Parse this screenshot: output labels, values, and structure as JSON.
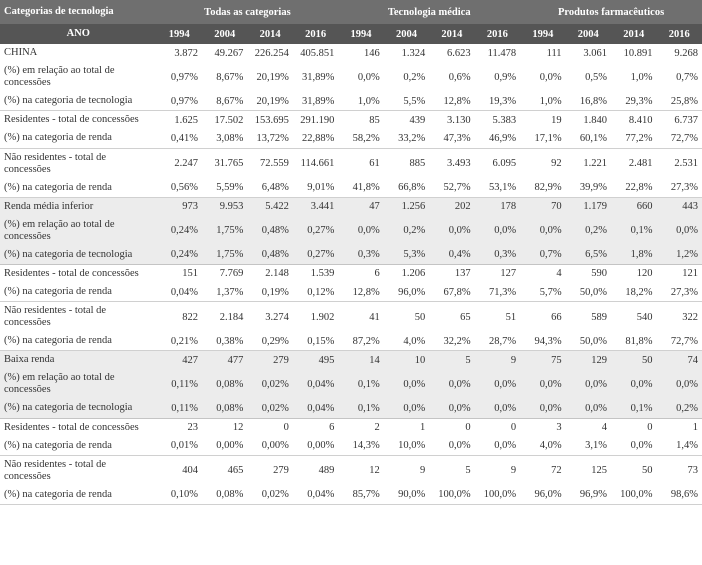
{
  "colors": {
    "header_dark": "#555555",
    "header_mid": "#6f6f6f",
    "header_text": "#ffffff",
    "band_bg": "#ececec",
    "sep": "#d0d0d0",
    "text": "#333333"
  },
  "typography": {
    "font_family": "Minion Pro / serif",
    "body_fontsize": 10.5,
    "header_fontsize": 10.5,
    "header_weight": "bold"
  },
  "header": {
    "group_label": "Categorias de tecnologia",
    "groups": [
      "Todas as categorias",
      "Tecnologia médica",
      "Produtos farmacêuticos"
    ],
    "year_label": "ANO",
    "years": [
      "1994",
      "2004",
      "2014",
      "2016",
      "1994",
      "2004",
      "2014",
      "2016",
      "1994",
      "2004",
      "2014",
      "2016"
    ]
  },
  "rows": [
    {
      "band": false,
      "sep": false,
      "label": "CHINA",
      "v": [
        "3.872",
        "49.267",
        "226.254",
        "405.851",
        "146",
        "1.324",
        "6.623",
        "11.478",
        "111",
        "3.061",
        "10.891",
        "9.268"
      ]
    },
    {
      "band": false,
      "sep": false,
      "label": "(%) em relação ao total de concessões",
      "v": [
        "0,97%",
        "8,67%",
        "20,19%",
        "31,89%",
        "0,0%",
        "0,2%",
        "0,6%",
        "0,9%",
        "0,0%",
        "0,5%",
        "1,0%",
        "0,7%"
      ]
    },
    {
      "band": false,
      "sep": true,
      "label": "(%) na categoria de tecnologia",
      "v": [
        "0,97%",
        "8,67%",
        "20,19%",
        "31,89%",
        "1,0%",
        "5,5%",
        "12,8%",
        "19,3%",
        "1,0%",
        "16,8%",
        "29,3%",
        "25,8%"
      ]
    },
    {
      "band": false,
      "sep": false,
      "label": "Residentes - total de concessões",
      "v": [
        "1.625",
        "17.502",
        "153.695",
        "291.190",
        "85",
        "439",
        "3.130",
        "5.383",
        "19",
        "1.840",
        "8.410",
        "6.737"
      ]
    },
    {
      "band": false,
      "sep": true,
      "label": "(%) na categoria de renda",
      "v": [
        "0,41%",
        "3,08%",
        "13,72%",
        "22,88%",
        "58,2%",
        "33,2%",
        "47,3%",
        "46,9%",
        "17,1%",
        "60,1%",
        "77,2%",
        "72,7%"
      ]
    },
    {
      "band": false,
      "sep": false,
      "label": "Não residentes - total de concessões",
      "v": [
        "2.247",
        "31.765",
        "72.559",
        "114.661",
        "61",
        "885",
        "3.493",
        "6.095",
        "92",
        "1.221",
        "2.481",
        "2.531"
      ]
    },
    {
      "band": false,
      "sep": true,
      "label": "(%) na categoria de renda",
      "v": [
        "0,56%",
        "5,59%",
        "6,48%",
        "9,01%",
        "41,8%",
        "66,8%",
        "52,7%",
        "53,1%",
        "82,9%",
        "39,9%",
        "22,8%",
        "27,3%"
      ]
    },
    {
      "band": true,
      "sep": false,
      "label": "Renda média inferior",
      "v": [
        "973",
        "9.953",
        "5.422",
        "3.441",
        "47",
        "1.256",
        "202",
        "178",
        "70",
        "1.179",
        "660",
        "443"
      ]
    },
    {
      "band": true,
      "sep": false,
      "label": "(%) em relação ao total de concessões",
      "v": [
        "0,24%",
        "1,75%",
        "0,48%",
        "0,27%",
        "0,0%",
        "0,2%",
        "0,0%",
        "0,0%",
        "0,0%",
        "0,2%",
        "0,1%",
        "0,0%"
      ]
    },
    {
      "band": true,
      "sep": true,
      "label": "(%) na categoria de tecnologia",
      "v": [
        "0,24%",
        "1,75%",
        "0,48%",
        "0,27%",
        "0,3%",
        "5,3%",
        "0,4%",
        "0,3%",
        "0,7%",
        "6,5%",
        "1,8%",
        "1,2%"
      ]
    },
    {
      "band": false,
      "sep": false,
      "label": "Residentes - total de concessões",
      "v": [
        "151",
        "7.769",
        "2.148",
        "1.539",
        "6",
        "1.206",
        "137",
        "127",
        "4",
        "590",
        "120",
        "121"
      ]
    },
    {
      "band": false,
      "sep": true,
      "label": "(%) na categoria de renda",
      "v": [
        "0,04%",
        "1,37%",
        "0,19%",
        "0,12%",
        "12,8%",
        "96,0%",
        "67,8%",
        "71,3%",
        "5,7%",
        "50,0%",
        "18,2%",
        "27,3%"
      ]
    },
    {
      "band": false,
      "sep": false,
      "label": "Não residentes - total de concessões",
      "v": [
        "822",
        "2.184",
        "3.274",
        "1.902",
        "41",
        "50",
        "65",
        "51",
        "66",
        "589",
        "540",
        "322"
      ]
    },
    {
      "band": false,
      "sep": true,
      "label": "(%) na categoria de renda",
      "v": [
        "0,21%",
        "0,38%",
        "0,29%",
        "0,15%",
        "87,2%",
        "4,0%",
        "32,2%",
        "28,7%",
        "94,3%",
        "50,0%",
        "81,8%",
        "72,7%"
      ]
    },
    {
      "band": true,
      "sep": false,
      "label": "Baixa renda",
      "v": [
        "427",
        "477",
        "279",
        "495",
        "14",
        "10",
        "5",
        "9",
        "75",
        "129",
        "50",
        "74"
      ]
    },
    {
      "band": true,
      "sep": false,
      "label": "(%) em relação ao total de concessões",
      "v": [
        "0,11%",
        "0,08%",
        "0,02%",
        "0,04%",
        "0,1%",
        "0,0%",
        "0,0%",
        "0,0%",
        "0,0%",
        "0,0%",
        "0,0%",
        "0,0%"
      ]
    },
    {
      "band": true,
      "sep": true,
      "label": "(%) na categoria de tecnologia",
      "v": [
        "0,11%",
        "0,08%",
        "0,02%",
        "0,04%",
        "0,1%",
        "0,0%",
        "0,0%",
        "0,0%",
        "0,0%",
        "0,0%",
        "0,1%",
        "0,2%"
      ]
    },
    {
      "band": false,
      "sep": false,
      "label": "Residentes - total de concessões",
      "v": [
        "23",
        "12",
        "0",
        "6",
        "2",
        "1",
        "0",
        "0",
        "3",
        "4",
        "0",
        "1"
      ]
    },
    {
      "band": false,
      "sep": true,
      "label": "(%) na categoria de renda",
      "v": [
        "0,01%",
        "0,00%",
        "0,00%",
        "0,00%",
        "14,3%",
        "10,0%",
        "0,0%",
        "0,0%",
        "4,0%",
        "3,1%",
        "0,0%",
        "1,4%"
      ]
    },
    {
      "band": false,
      "sep": false,
      "label": "Não residentes - total de concessões",
      "v": [
        "404",
        "465",
        "279",
        "489",
        "12",
        "9",
        "5",
        "9",
        "72",
        "125",
        "50",
        "73"
      ]
    },
    {
      "band": false,
      "sep": true,
      "label": "(%) na categoria de renda",
      "v": [
        "0,10%",
        "0,08%",
        "0,02%",
        "0,04%",
        "85,7%",
        "90,0%",
        "100,0%",
        "100,0%",
        "96,0%",
        "96,9%",
        "100,0%",
        "98,6%"
      ]
    }
  ]
}
